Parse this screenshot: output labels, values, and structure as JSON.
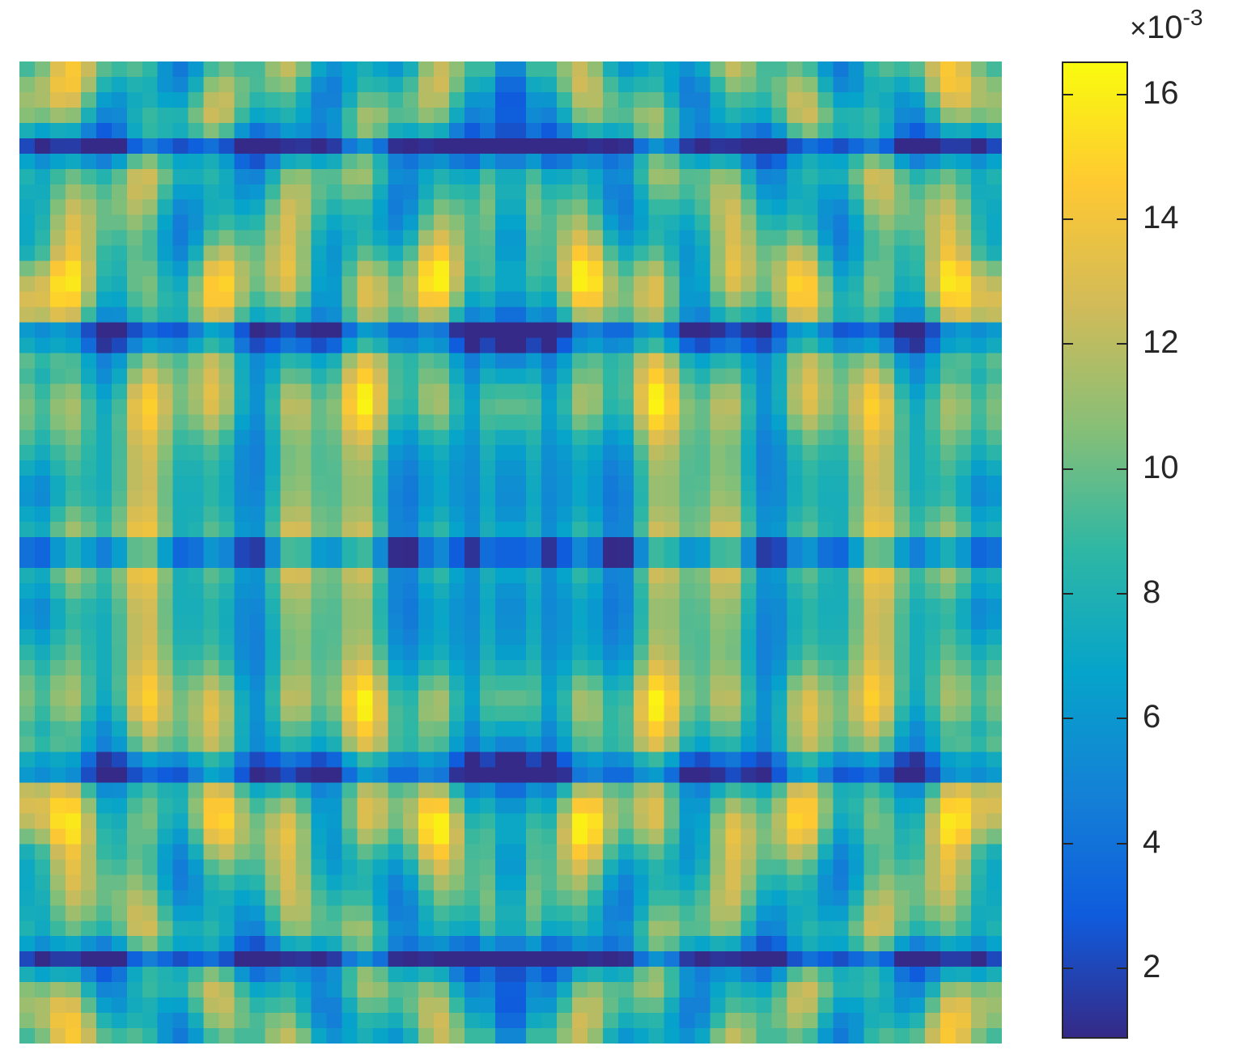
{
  "chart_data": {
    "type": "heatmap",
    "title": "",
    "xlabel": "",
    "ylabel": "",
    "grid_size": [
      64,
      64
    ],
    "symmetry": "mirror about vertical and horizontal center lines",
    "colormap": "parula",
    "colormap_stops": [
      "#352a87",
      "#0f5cdd",
      "#1481d6",
      "#06a4ca",
      "#2eb7a4",
      "#87bf77",
      "#d1bb59",
      "#fec832",
      "#f9fb0e"
    ],
    "colorbar": {
      "range": [
        0.0009,
        0.0165
      ],
      "ticks": [
        2,
        4,
        6,
        8,
        10,
        12,
        14,
        16
      ],
      "tick_labels": [
        "2",
        "4",
        "6",
        "8",
        "10",
        "12",
        "14",
        "16"
      ],
      "exponent_base": "10",
      "exponent_power": "-3",
      "exponent_prefix": "×"
    },
    "features": {
      "peak_value": 0.0165,
      "min_value": 0.0009,
      "bright_row_bands_fraction": [
        0.22,
        0.345,
        0.5,
        0.655,
        0.78
      ],
      "dark_row_lines_fraction": [
        0.08,
        0.275,
        0.5,
        0.725,
        0.92
      ],
      "dark_col_line_fraction": 0.5
    }
  }
}
